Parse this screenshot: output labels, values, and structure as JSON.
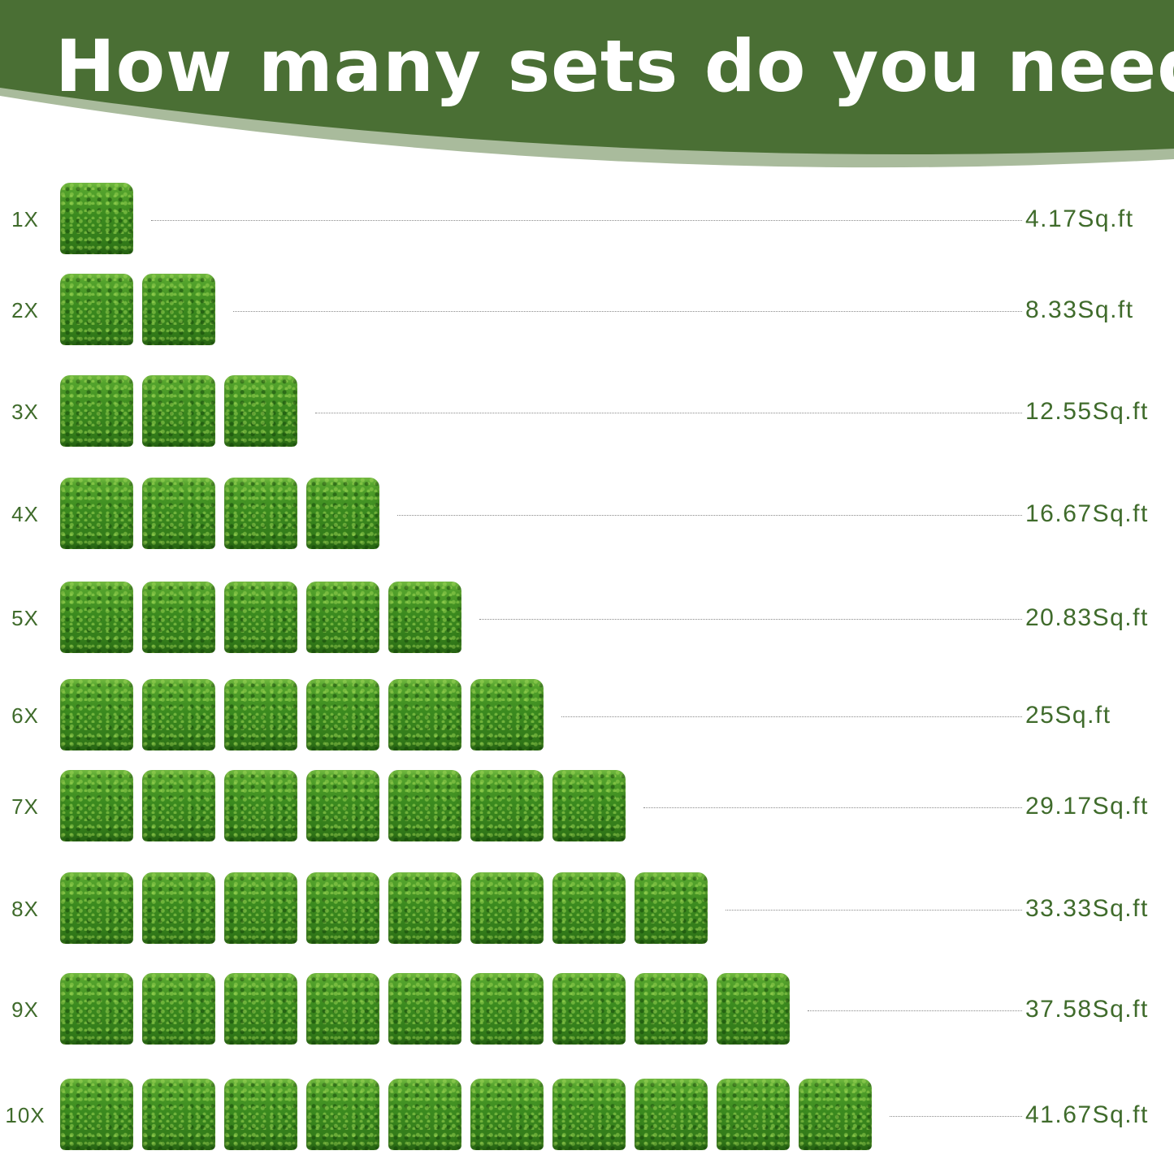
{
  "header": {
    "title": "How many sets do you need",
    "colors": {
      "banner": "#4a6f34",
      "banner_edge": "#a9bb9c",
      "label_text": "#3f6b2b"
    }
  },
  "rows": [
    {
      "label": "1X",
      "count": 1,
      "value": "4.17Sq.ft"
    },
    {
      "label": "2X",
      "count": 2,
      "value": "8.33Sq.ft"
    },
    {
      "label": "3X",
      "count": 3,
      "value": "12.55Sq.ft"
    },
    {
      "label": "4X",
      "count": 4,
      "value": "16.67Sq.ft"
    },
    {
      "label": "5X",
      "count": 5,
      "value": "20.83Sq.ft"
    },
    {
      "label": "6X",
      "count": 6,
      "value": "25Sq.ft"
    },
    {
      "label": "7X",
      "count": 7,
      "value": "29.17Sq.ft"
    },
    {
      "label": "8X",
      "count": 8,
      "value": "33.33Sq.ft"
    },
    {
      "label": "9X",
      "count": 9,
      "value": "37.58Sq.ft"
    },
    {
      "label": "10X",
      "count": 10,
      "value": "41.67Sq.ft"
    }
  ]
}
